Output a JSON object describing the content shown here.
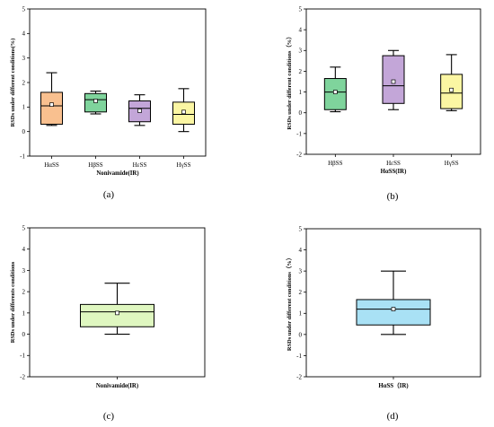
{
  "chart_data": [
    {
      "type": "box",
      "panel_label": "(a)",
      "xlabel": "Nonivamide(IR)",
      "ylabel": "RSDs under different conditions(%)",
      "ylim": [
        -1,
        5
      ],
      "yticks": [
        "-1",
        "0",
        "1",
        "2",
        "3",
        "4",
        "5"
      ],
      "categories": [
        "HαSS",
        "HβSS",
        "HεSS",
        "HγSS"
      ],
      "colors": [
        "#f9c08f",
        "#7fd49c",
        "#c3a6d8",
        "#fbf6a3"
      ],
      "boxes": [
        {
          "min": 0.25,
          "q1": 0.3,
          "median": 1.05,
          "q3": 1.6,
          "max": 2.4,
          "mean": 1.1
        },
        {
          "min": 0.72,
          "q1": 0.8,
          "median": 1.3,
          "q3": 1.55,
          "max": 1.65,
          "mean": 1.25
        },
        {
          "min": 0.25,
          "q1": 0.4,
          "median": 0.95,
          "q3": 1.25,
          "max": 1.5,
          "mean": 0.85
        },
        {
          "min": 0.0,
          "q1": 0.3,
          "median": 0.7,
          "q3": 1.2,
          "max": 1.75,
          "mean": 0.8
        }
      ]
    },
    {
      "type": "box",
      "panel_label": "(b)",
      "xlabel": "HαSS(IR)",
      "ylabel": "RSDs under different conditions（%）",
      "ylim": [
        -2,
        5
      ],
      "yticks": [
        "-2",
        "-1",
        "0",
        "1",
        "2",
        "3",
        "4",
        "5"
      ],
      "categories": [
        "HβSS",
        "HεSS",
        "HγSS"
      ],
      "colors": [
        "#7fd49c",
        "#c3a6d8",
        "#fbf6a3"
      ],
      "boxes": [
        {
          "min": 0.05,
          "q1": 0.15,
          "median": 1.0,
          "q3": 1.65,
          "max": 2.2,
          "mean": 1.0
        },
        {
          "min": 0.15,
          "q1": 0.45,
          "median": 1.3,
          "q3": 2.75,
          "max": 3.0,
          "mean": 1.5
        },
        {
          "min": 0.1,
          "q1": 0.2,
          "median": 0.95,
          "q3": 1.85,
          "max": 2.8,
          "mean": 1.1
        }
      ]
    },
    {
      "type": "box",
      "panel_label": "(c)",
      "xlabel": "Nonivamide(IR)",
      "ylabel": "RSDs under differents conditions",
      "ylim": [
        -2,
        5
      ],
      "yticks": [
        "-2",
        "-1",
        "0",
        "1",
        "2",
        "3",
        "4",
        "5"
      ],
      "categories": [
        ""
      ],
      "colors": [
        "#dff7c0"
      ],
      "boxes": [
        {
          "min": 0.0,
          "q1": 0.35,
          "median": 1.05,
          "q3": 1.4,
          "max": 2.4,
          "mean": 1.0
        }
      ]
    },
    {
      "type": "box",
      "panel_label": "(d)",
      "xlabel": "HαSS（IR)",
      "ylabel": "RSDs under different conditions（%）",
      "ylim": [
        -2,
        5
      ],
      "yticks": [
        "-2",
        "-1",
        "0",
        "1",
        "2",
        "3",
        "4",
        "5"
      ],
      "categories": [
        ""
      ],
      "colors": [
        "#a9e1f5"
      ],
      "boxes": [
        {
          "min": 0.0,
          "q1": 0.45,
          "median": 1.2,
          "q3": 1.65,
          "max": 3.0,
          "mean": 1.2
        }
      ]
    }
  ]
}
